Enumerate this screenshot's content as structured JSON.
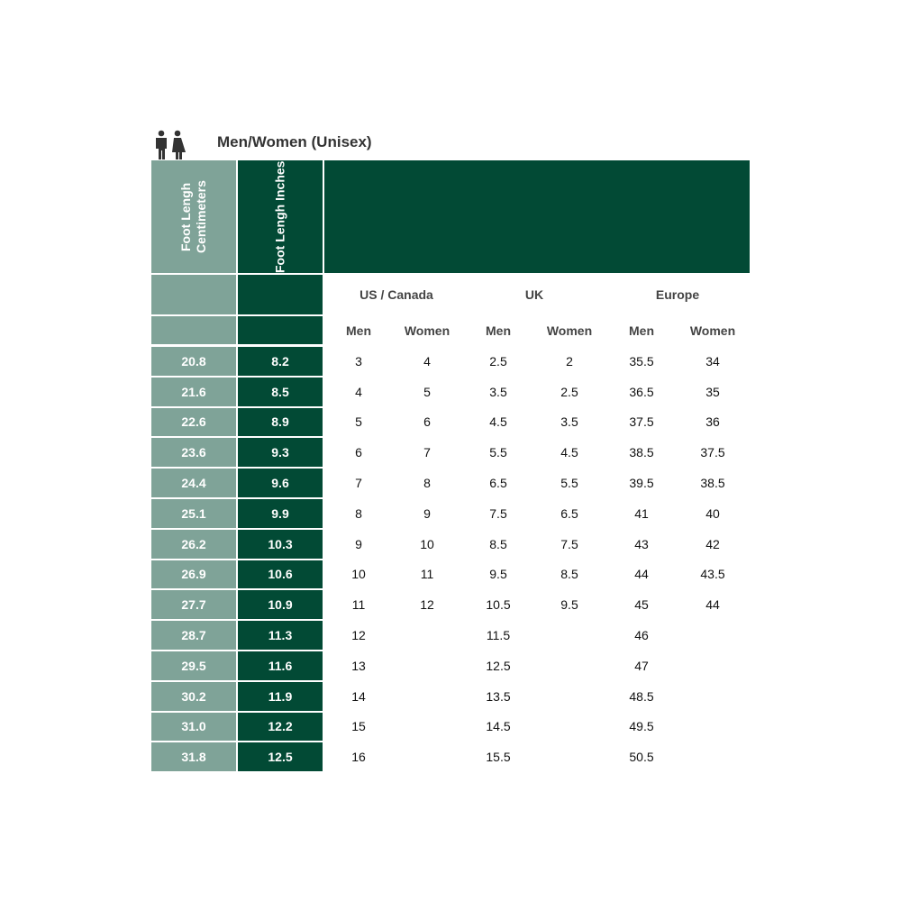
{
  "title": "Men/Women (Unisex)",
  "icon": "men-women-icon",
  "colors": {
    "light": "#7fa398",
    "dark": "#024a35"
  },
  "headers": {
    "cm": "Foot Lengh Centimeters",
    "inches": "Foot Lengh Inches",
    "groups": [
      "US / Canada",
      "UK",
      "Europe"
    ],
    "sub": [
      "Men",
      "Women",
      "Men",
      "Women",
      "Men",
      "Women"
    ]
  },
  "rows": [
    {
      "cm": "20.8",
      "in": "8.2",
      "sizes": [
        "3",
        "4",
        "2.5",
        "2",
        "35.5",
        "34"
      ]
    },
    {
      "cm": "21.6",
      "in": "8.5",
      "sizes": [
        "4",
        "5",
        "3.5",
        "2.5",
        "36.5",
        "35"
      ]
    },
    {
      "cm": "22.6",
      "in": "8.9",
      "sizes": [
        "5",
        "6",
        "4.5",
        "3.5",
        "37.5",
        "36"
      ]
    },
    {
      "cm": "23.6",
      "in": "9.3",
      "sizes": [
        "6",
        "7",
        "5.5",
        "4.5",
        "38.5",
        "37.5"
      ]
    },
    {
      "cm": "24.4",
      "in": "9.6",
      "sizes": [
        "7",
        "8",
        "6.5",
        "5.5",
        "39.5",
        "38.5"
      ]
    },
    {
      "cm": "25.1",
      "in": "9.9",
      "sizes": [
        "8",
        "9",
        "7.5",
        "6.5",
        "41",
        "40"
      ]
    },
    {
      "cm": "26.2",
      "in": "10.3",
      "sizes": [
        "9",
        "10",
        "8.5",
        "7.5",
        "43",
        "42"
      ]
    },
    {
      "cm": "26.9",
      "in": "10.6",
      "sizes": [
        "10",
        "11",
        "9.5",
        "8.5",
        "44",
        "43.5"
      ]
    },
    {
      "cm": "27.7",
      "in": "10.9",
      "sizes": [
        "11",
        "12",
        "10.5",
        "9.5",
        "45",
        "44"
      ]
    },
    {
      "cm": "28.7",
      "in": "11.3",
      "sizes": [
        "12",
        "",
        "11.5",
        "",
        "46",
        ""
      ]
    },
    {
      "cm": "29.5",
      "in": "11.6",
      "sizes": [
        "13",
        "",
        "12.5",
        "",
        "47",
        ""
      ]
    },
    {
      "cm": "30.2",
      "in": "11.9",
      "sizes": [
        "14",
        "",
        "13.5",
        "",
        "48.5",
        ""
      ]
    },
    {
      "cm": "31.0",
      "in": "12.2",
      "sizes": [
        "15",
        "",
        "14.5",
        "",
        "49.5",
        ""
      ]
    },
    {
      "cm": "31.8",
      "in": "12.5",
      "sizes": [
        "16",
        "",
        "15.5",
        "",
        "50.5",
        ""
      ]
    }
  ]
}
